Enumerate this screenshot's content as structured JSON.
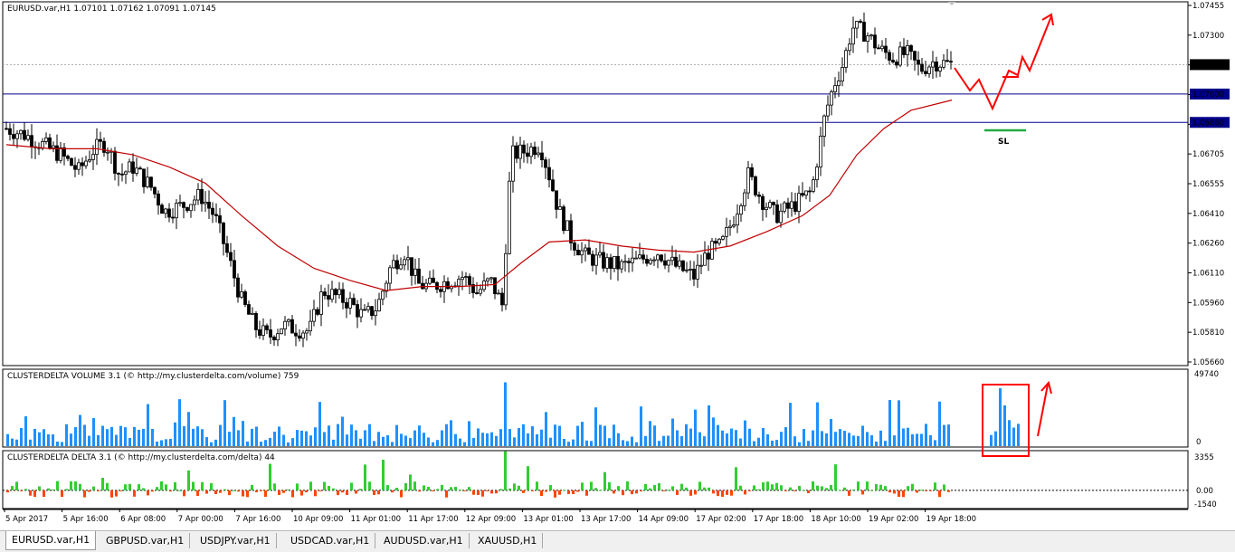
{
  "window": {
    "header": "EURUSD.var,H1  1.07101 1.07162 1.07091 1.07145"
  },
  "price_pane": {
    "y_ticks": [
      "1.07455",
      "1.07300",
      "1.07145",
      "1.07000",
      "1.06860",
      "1.06705",
      "1.06555",
      "1.06410",
      "1.06260",
      "1.06110",
      "1.05960",
      "1.05810",
      "1.05660"
    ],
    "current_price_label": "1.07145",
    "level_1_label": "1.07000",
    "level_2_label": "1.06860",
    "sl_label": "SL"
  },
  "volume_pane": {
    "title": "CLUSTERDELTA VOLUME 3.1 (© http://my.clusterdelta.com/volume) 759",
    "y_top": "49740",
    "y_bottom": "0"
  },
  "delta_pane": {
    "title": "CLUSTERDELTA DELTA 3.1 (© http://my.clusterdelta.com/delta) 44",
    "y_top": "3355",
    "y_zero": "0.00",
    "y_bottom": "-1540"
  },
  "x_axis": {
    "labels": [
      "5 Apr 2017",
      "5 Apr 16:00",
      "6 Apr 08:00",
      "7 Apr 00:00",
      "7 Apr 16:00",
      "10 Apr 09:00",
      "11 Apr 01:00",
      "11 Apr 17:00",
      "12 Apr 09:00",
      "13 Apr 01:00",
      "13 Apr 17:00",
      "14 Apr 09:00",
      "17 Apr 02:00",
      "17 Apr 18:00",
      "18 Apr 10:00",
      "19 Apr 02:00",
      "19 Apr 18:00"
    ]
  },
  "tabs": [
    "EURUSD.var,H1",
    "GBPUSD.var,H1",
    "USDJPY.var,H1",
    "USDCAD.var,H1",
    "AUDUSD.var,H1",
    "XAUUSD,H1"
  ],
  "colors": {
    "bull_candle": "#ffffff",
    "bear_candle": "#000000",
    "moving_average": "#c00000",
    "level_lines": "#00008b",
    "volume_bars": "#1e90ff",
    "delta_positive": "#32cd32",
    "delta_negative": "#ff4500",
    "annotation": "#ff0000",
    "sl_line": "#22aa44"
  },
  "chart_data": {
    "type": "candlestick",
    "symbol": "EURUSD.var",
    "timeframe": "H1",
    "last_ohlc": {
      "open": 1.07101,
      "high": 1.07162,
      "low": 1.07091,
      "close": 1.07145
    },
    "ylim": [
      1.0566,
      1.07455
    ],
    "close_path": [
      [
        0,
        1.0683
      ],
      [
        20,
        1.068
      ],
      [
        40,
        1.0675
      ],
      [
        60,
        1.067
      ],
      [
        80,
        1.0662
      ],
      [
        95,
        1.0672
      ],
      [
        110,
        1.0676
      ],
      [
        125,
        1.066
      ],
      [
        140,
        1.0664
      ],
      [
        160,
        1.0654
      ],
      [
        175,
        1.0642
      ],
      [
        195,
        1.0645
      ],
      [
        215,
        1.065
      ],
      [
        230,
        1.064
      ],
      [
        245,
        1.062
      ],
      [
        260,
        1.0598
      ],
      [
        275,
        1.0585
      ],
      [
        290,
        1.058
      ],
      [
        305,
        1.0586
      ],
      [
        320,
        1.0584
      ],
      [
        335,
        1.0583
      ],
      [
        350,
        1.0603
      ],
      [
        365,
        1.06
      ],
      [
        380,
        1.0597
      ],
      [
        395,
        1.059
      ],
      [
        410,
        1.0595
      ],
      [
        425,
        1.0615
      ],
      [
        440,
        1.0622
      ],
      [
        455,
        1.0606
      ],
      [
        470,
        1.0605
      ],
      [
        490,
        1.0608
      ],
      [
        505,
        1.061
      ],
      [
        520,
        1.0602
      ],
      [
        535,
        1.0608
      ],
      [
        548,
        1.0596
      ],
      [
        558,
        1.067
      ],
      [
        575,
        1.0672
      ],
      [
        590,
        1.0675
      ],
      [
        600,
        1.066
      ],
      [
        610,
        1.0643
      ],
      [
        625,
        1.0628
      ],
      [
        640,
        1.062
      ],
      [
        660,
        1.0617
      ],
      [
        680,
        1.0615
      ],
      [
        700,
        1.0618
      ],
      [
        720,
        1.0622
      ],
      [
        740,
        1.0615
      ],
      [
        760,
        1.061
      ],
      [
        775,
        1.0622
      ],
      [
        790,
        1.0625
      ],
      [
        805,
        1.064
      ],
      [
        820,
        1.066
      ],
      [
        835,
        1.0648
      ],
      [
        850,
        1.064
      ],
      [
        870,
        1.0645
      ],
      [
        890,
        1.0652
      ],
      [
        905,
        1.069
      ],
      [
        915,
        1.0705
      ],
      [
        925,
        1.0715
      ],
      [
        935,
        1.0733
      ],
      [
        950,
        1.073
      ],
      [
        965,
        1.0722
      ],
      [
        980,
        1.0718
      ],
      [
        995,
        1.072
      ],
      [
        1010,
        1.0712
      ],
      [
        1025,
        1.0716
      ],
      [
        1045,
        1.07145
      ]
    ],
    "moving_average_path": [
      [
        0,
        1.0675
      ],
      [
        50,
        1.0673
      ],
      [
        100,
        1.0673
      ],
      [
        140,
        1.067
      ],
      [
        180,
        1.0664
      ],
      [
        220,
        1.0656
      ],
      [
        260,
        1.064
      ],
      [
        300,
        1.0625
      ],
      [
        340,
        1.0614
      ],
      [
        380,
        1.0608
      ],
      [
        420,
        1.0603
      ],
      [
        460,
        1.0605
      ],
      [
        500,
        1.0605
      ],
      [
        540,
        1.0606
      ],
      [
        570,
        1.0617
      ],
      [
        600,
        1.0627
      ],
      [
        640,
        1.0628
      ],
      [
        680,
        1.0625
      ],
      [
        720,
        1.0623
      ],
      [
        760,
        1.0622
      ],
      [
        800,
        1.0625
      ],
      [
        840,
        1.0632
      ],
      [
        880,
        1.064
      ],
      [
        910,
        1.065
      ],
      [
        940,
        1.067
      ],
      [
        970,
        1.0683
      ],
      [
        1000,
        1.0692
      ],
      [
        1045,
        1.0697
      ]
    ],
    "horizontal_levels": [
      1.07,
      1.0686
    ],
    "volume_max": 49740,
    "delta_range": [
      -1540,
      3355
    ]
  }
}
